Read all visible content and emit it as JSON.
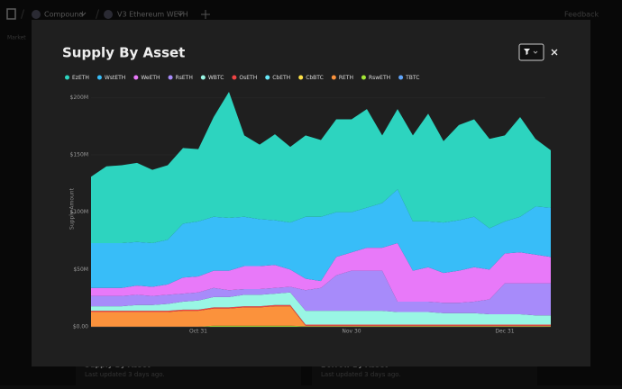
{
  "nav": {
    "project": "Compound",
    "market": "V3 Ethereum WETH",
    "feedback": "Feedback",
    "tab": "Market"
  },
  "cards": [
    {
      "title": "Supply By Asset",
      "updated": "Last updated 3 days ago."
    },
    {
      "title": "Borrow By Asset",
      "updated": "Last updated 3 days ago."
    }
  ],
  "chart_data": {
    "type": "stacked-area",
    "title": "Supply By Asset",
    "y_label": "Supply Amount",
    "categories": [
      null,
      null,
      null,
      null,
      null,
      null,
      null,
      "Oct 31",
      null,
      null,
      null,
      null,
      null,
      null,
      null,
      null,
      null,
      "Nov 30",
      null,
      null,
      null,
      null,
      null,
      null,
      null,
      null,
      null,
      "Dec 31",
      null,
      null,
      null
    ],
    "series": [
      {
        "name": "EzETH",
        "color": "#2dd4bf",
        "values": [
          58,
          67,
          68,
          69,
          64,
          65,
          66,
          63,
          87,
          110,
          71,
          65,
          75,
          66,
          71,
          67,
          81,
          81,
          86,
          59,
          70,
          75,
          94,
          71,
          83,
          85,
          78,
          75,
          87,
          59,
          50
        ]
      },
      {
        "name": "WstETH",
        "color": "#38bdf8",
        "values": [
          39,
          39,
          39,
          38,
          38,
          39,
          47,
          48,
          47,
          46,
          43,
          41,
          39,
          41,
          54,
          56,
          39,
          35,
          35,
          39,
          47,
          43,
          40,
          44,
          44,
          44,
          36,
          28,
          31,
          42,
          43
        ]
      },
      {
        "name": "WeETH",
        "color": "#e879f9",
        "values": [
          7,
          7,
          7,
          8,
          8,
          9,
          14,
          14,
          15,
          17,
          20,
          20,
          20,
          15,
          10,
          6,
          16,
          16,
          20,
          20,
          51,
          27,
          30,
          26,
          28,
          30,
          26,
          26,
          27,
          25,
          23
        ]
      },
      {
        "name": "RsETH",
        "color": "#a78bfa",
        "values": [
          9,
          9,
          9,
          9,
          8,
          8,
          7,
          7,
          8,
          6,
          5,
          5,
          5,
          5,
          18,
          20,
          31,
          35,
          35,
          35,
          9,
          9,
          9,
          9,
          9,
          10,
          13,
          27,
          27,
          28,
          28
        ]
      },
      {
        "name": "WBTC",
        "color": "#99f6e4",
        "values": [
          4,
          4,
          4,
          5,
          5,
          6,
          7,
          8,
          9,
          9,
          10,
          10,
          10,
          11,
          12,
          12,
          12,
          12,
          12,
          12,
          11,
          11,
          11,
          10,
          10,
          10,
          9,
          9,
          9,
          8,
          8
        ]
      },
      {
        "name": "OsETH",
        "color": "#ef4444",
        "values": [
          1,
          1,
          1,
          1,
          1,
          1,
          1,
          1,
          1,
          1,
          1,
          1,
          1,
          1,
          1,
          1,
          1,
          1,
          1,
          1,
          1,
          1,
          1,
          1,
          1,
          1,
          1,
          1,
          1,
          1,
          1
        ]
      },
      {
        "name": "CbETH",
        "color": "#67e8f9",
        "values": [
          0,
          0,
          0,
          0,
          0,
          0,
          0,
          0,
          0,
          0,
          0,
          0,
          0,
          0,
          0,
          0,
          0,
          0,
          0,
          0,
          0,
          0,
          0,
          0,
          0,
          0,
          0,
          0,
          0,
          0,
          0
        ]
      },
      {
        "name": "CbBTC",
        "color": "#fde047",
        "values": [
          0,
          0,
          0,
          0,
          0,
          0,
          0,
          0,
          0,
          0,
          0,
          0,
          0,
          0,
          0,
          0,
          0,
          0,
          0,
          0,
          0,
          0,
          0,
          0,
          0,
          0,
          0,
          0,
          0,
          0,
          0
        ]
      },
      {
        "name": "RETH",
        "color": "#fb923c",
        "values": [
          13,
          13,
          13,
          13,
          13,
          13,
          14,
          14,
          15,
          15,
          16,
          16,
          17,
          17,
          0.5,
          0.5,
          0.5,
          0.5,
          0.5,
          0.5,
          0.5,
          0.5,
          0.5,
          0.5,
          0.5,
          0.5,
          0.5,
          0.5,
          0.5,
          0.5,
          0.5
        ]
      },
      {
        "name": "RswETH",
        "color": "#a3e635",
        "values": [
          0,
          0,
          0,
          0,
          0,
          0,
          0,
          0,
          1,
          1,
          1,
          1,
          1,
          1,
          0.5,
          0.5,
          0.5,
          0.5,
          0.5,
          0.5,
          0.5,
          0.5,
          0.5,
          0.5,
          0.5,
          0.5,
          0.5,
          0.5,
          0.5,
          0.5,
          0.5
        ]
      },
      {
        "name": "TBTC",
        "color": "#60a5fa",
        "values": [
          0,
          0,
          0,
          0,
          0,
          0,
          0,
          0,
          0,
          0,
          0,
          0,
          0,
          0,
          0,
          0,
          0,
          0,
          0,
          0,
          0,
          0,
          0,
          0,
          0,
          0,
          0,
          0,
          0,
          0,
          0
        ]
      }
    ],
    "ylim": [
      0,
      205
    ],
    "yticks": [
      {
        "value": 0,
        "label": "$0.00"
      },
      {
        "value": 50,
        "label": "$50M"
      },
      {
        "value": 100,
        "label": "$100M"
      },
      {
        "value": 150,
        "label": "$150M"
      },
      {
        "value": 200,
        "label": "$200M"
      }
    ],
    "grid": true
  }
}
